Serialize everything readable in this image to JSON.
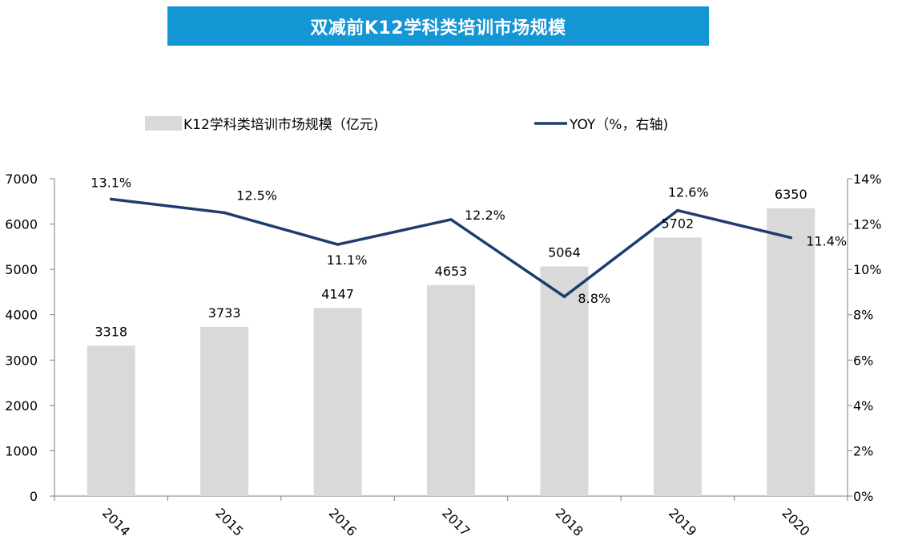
{
  "title": "双减前K12学科类培训市场规模",
  "legend": {
    "bar_label": "K12学科类培训市场规模（亿元)",
    "line_label": "YOY（%，右轴)"
  },
  "colors": {
    "title_bg": "#1596d4",
    "bar": "#d9d9d9",
    "line": "#1f3b70",
    "axis": "#7f7f7f"
  },
  "chart_data": {
    "type": "bar+line",
    "categories": [
      "2014",
      "2015",
      "2016",
      "2017",
      "2018",
      "2019",
      "2020"
    ],
    "series": [
      {
        "name": "K12学科类培训市场规模（亿元)",
        "type": "bar",
        "axis": "left",
        "values": [
          3318,
          3733,
          4147,
          4653,
          5064,
          5702,
          6350
        ],
        "labels": [
          "3318",
          "3733",
          "4147",
          "4653",
          "5064",
          "5702",
          "6350"
        ]
      },
      {
        "name": "YOY（%，右轴)",
        "type": "line",
        "axis": "right",
        "values": [
          13.1,
          12.5,
          11.1,
          12.2,
          8.8,
          12.6,
          11.4
        ],
        "labels": [
          "13.1%",
          "12.5%",
          "11.1%",
          "12.2%",
          "8.8%",
          "12.6%",
          "11.4%"
        ]
      }
    ],
    "y_left": {
      "min": 0,
      "max": 7000,
      "ticks": [
        "0",
        "1000",
        "2000",
        "3000",
        "4000",
        "5000",
        "6000",
        "7000"
      ]
    },
    "y_right": {
      "min": 0,
      "max": 14,
      "ticks": [
        "0%",
        "2%",
        "4%",
        "6%",
        "8%",
        "10%",
        "12%",
        "14%"
      ]
    },
    "grid": false,
    "legend_position": "top"
  }
}
